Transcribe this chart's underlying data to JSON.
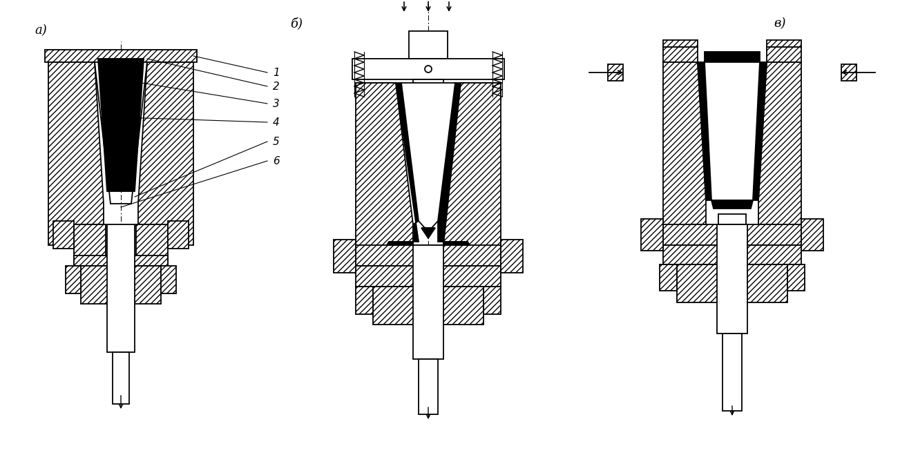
{
  "bg_color": "#ffffff",
  "lw": 1.3,
  "lw_thin": 0.8,
  "label_a": "а)",
  "label_b": "б)",
  "label_v": "в)",
  "hatch": "////",
  "label_fontsize": 13,
  "num_fontsize": 11
}
